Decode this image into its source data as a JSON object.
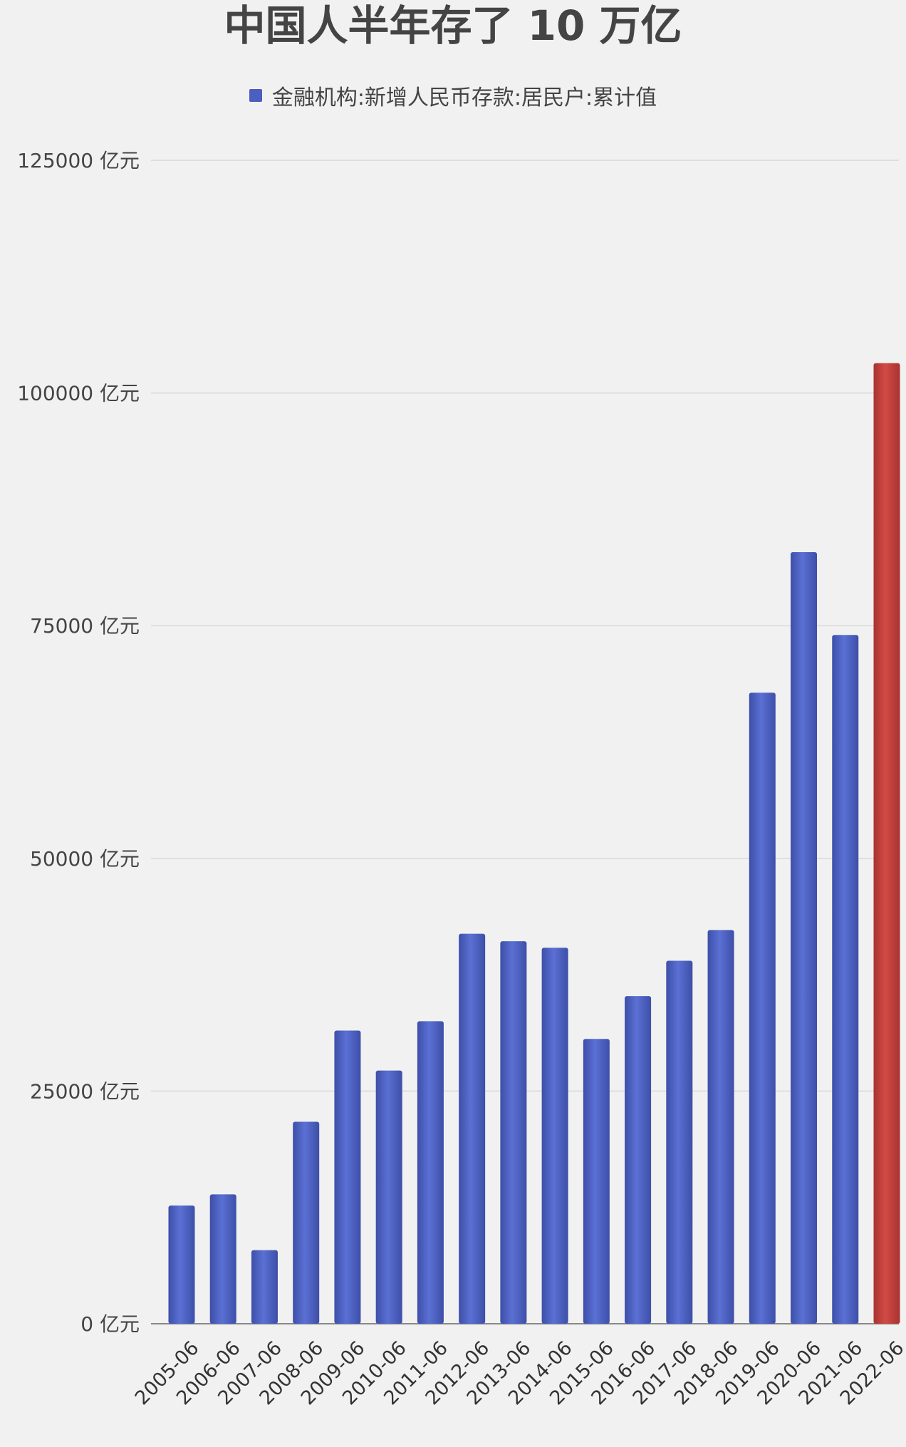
{
  "chart_data": {
    "type": "bar",
    "title": "中国人半年存了 10 万亿",
    "legend": {
      "label": "金融机构:新增人民币存款:居民户:累计值",
      "position": "top"
    },
    "unit": "亿元",
    "y_tick_labels": [
      "0 亿元",
      "25000 亿元",
      "50000 亿元",
      "75000 亿元",
      "100000 亿元",
      "125000 亿元"
    ],
    "y_ticks": [
      0,
      25000,
      50000,
      75000,
      100000,
      125000
    ],
    "ylim": [
      0,
      125000
    ],
    "grid": true,
    "categories": [
      "2005-06",
      "2006-06",
      "2007-06",
      "2008-06",
      "2009-06",
      "2010-06",
      "2011-06",
      "2012-06",
      "2013-06",
      "2014-06",
      "2015-06",
      "2016-06",
      "2017-06",
      "2018-06",
      "2019-06",
      "2020-06",
      "2021-06",
      "2022-06"
    ],
    "series": [
      {
        "values": [
          12700,
          13900,
          7900,
          21700,
          31500,
          27200,
          32500,
          41900,
          41100,
          40400,
          30600,
          35200,
          39000,
          42300,
          67800,
          82900,
          74000,
          103200
        ],
        "color": "#4a5fbf",
        "highlight_color": "#c23b3b",
        "highlight_index": 17
      }
    ]
  }
}
